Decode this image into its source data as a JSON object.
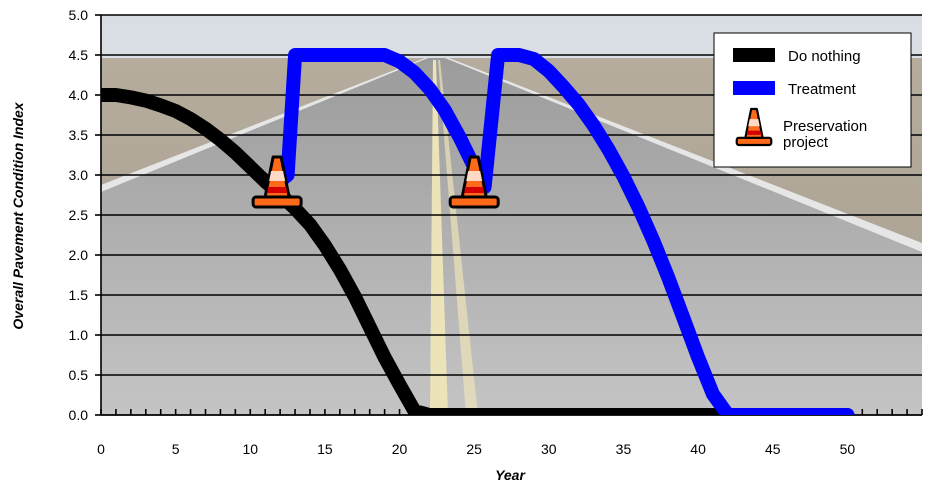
{
  "chart_data": {
    "type": "line",
    "title": "",
    "xlabel": "Year",
    "ylabel": "Overall Pavement Condition Index",
    "xlim": [
      0,
      55
    ],
    "ylim": [
      0,
      5
    ],
    "x_ticks": [
      "0",
      "5",
      "10",
      "15",
      "20",
      "25",
      "30",
      "35",
      "40",
      "45",
      "50"
    ],
    "y_ticks": [
      "0.0",
      "0.5",
      "1.0",
      "1.5",
      "2.0",
      "2.5",
      "3.0",
      "3.5",
      "4.0",
      "4.5",
      "5.0"
    ],
    "grid": true,
    "legend_position": "top-right",
    "background": "photo of a straight two-lane rural road",
    "series": [
      {
        "name": "Do nothing",
        "color": "#000000",
        "x": [
          0,
          1,
          2,
          3,
          4,
          5,
          6,
          7,
          8,
          9,
          10,
          11,
          12,
          13,
          14,
          15,
          16,
          17,
          18,
          19,
          20,
          21,
          22,
          23,
          30,
          40,
          50
        ],
        "y": [
          4.0,
          4.0,
          3.97,
          3.93,
          3.87,
          3.8,
          3.7,
          3.58,
          3.44,
          3.28,
          3.1,
          2.92,
          2.76,
          2.58,
          2.38,
          2.12,
          1.82,
          1.48,
          1.1,
          0.72,
          0.38,
          0.05,
          0.0,
          0.0,
          0.0,
          0.0,
          0.0
        ]
      },
      {
        "name": "Treatment",
        "color": "#0000ff",
        "x": [
          11.5,
          12.5,
          13,
          14,
          16,
          18,
          19,
          20,
          21,
          22,
          23,
          24,
          25,
          25.7,
          26.6,
          27,
          28,
          29,
          30,
          31,
          32,
          33,
          34,
          35,
          36,
          37,
          38,
          39,
          40,
          41,
          42,
          43,
          45,
          50
        ],
        "y": [
          2.85,
          3.0,
          4.5,
          4.5,
          4.5,
          4.5,
          4.5,
          4.42,
          4.28,
          4.08,
          3.82,
          3.48,
          3.1,
          2.85,
          4.5,
          4.5,
          4.5,
          4.45,
          4.3,
          4.1,
          3.88,
          3.62,
          3.32,
          2.98,
          2.6,
          2.18,
          1.72,
          1.22,
          0.72,
          0.26,
          0.0,
          0.0,
          0.0,
          0.0
        ]
      }
    ],
    "markers": [
      {
        "name": "Preservation project",
        "x": 11.8,
        "y": 2.85
      },
      {
        "name": "Preservation project",
        "x": 25.0,
        "y": 2.85
      }
    ]
  }
}
